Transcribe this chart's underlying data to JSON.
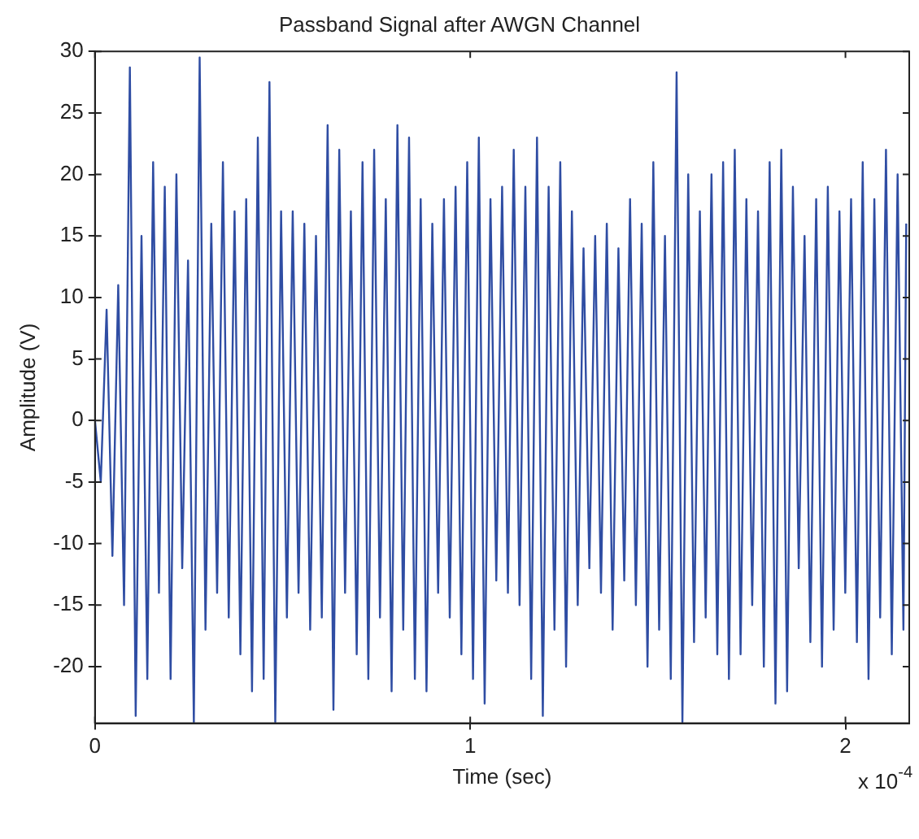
{
  "chart_data": {
    "type": "line",
    "title": "Passband Signal after AWGN Channel",
    "xlabel": "Time (sec)",
    "ylabel": "Amplitude (V)",
    "annotations": [
      "x 10$^{-4}$"
    ],
    "x": [
      0,
      0.0155,
      0.031,
      0.0465,
      0.062,
      0.0775,
      0.093,
      0.1085,
      0.124,
      0.1395,
      0.155,
      0.1705,
      0.186,
      0.2015,
      0.217,
      0.2325,
      0.248,
      0.2635,
      0.279,
      0.2945,
      0.31,
      0.3255,
      0.341,
      0.3565,
      0.372,
      0.3875,
      0.403,
      0.4185,
      0.434,
      0.4495,
      0.465,
      0.4805,
      0.496,
      0.5115,
      0.527,
      0.5425,
      0.558,
      0.5735,
      0.589,
      0.6045,
      0.62,
      0.6355,
      0.651,
      0.6665,
      0.682,
      0.6975,
      0.713,
      0.7285,
      0.744,
      0.7595,
      0.775,
      0.7905,
      0.806,
      0.8215,
      0.837,
      0.8525,
      0.868,
      0.8835,
      0.899,
      0.9145,
      0.93,
      0.9455,
      0.961,
      0.9765,
      0.992,
      1.0075,
      1.023,
      1.0385,
      1.054,
      1.0695,
      1.085,
      1.1005,
      1.116,
      1.1315,
      1.147,
      1.1625,
      1.178,
      1.1935,
      1.209,
      1.2245,
      1.24,
      1.2555,
      1.271,
      1.2865,
      1.302,
      1.3175,
      1.333,
      1.3485,
      1.364,
      1.3795,
      1.395,
      1.4105,
      1.426,
      1.4415,
      1.457,
      1.4725,
      1.488,
      1.5035,
      1.519,
      1.5345,
      1.55,
      1.5655,
      1.581,
      1.5965,
      1.612,
      1.6275,
      1.643,
      1.6585,
      1.674,
      1.6895,
      1.705,
      1.7205,
      1.736,
      1.7515,
      1.767,
      1.7825,
      1.798,
      1.8135,
      1.829,
      1.8445,
      1.86,
      1.8755,
      1.891,
      1.9065,
      1.922,
      1.9375,
      1.953,
      1.9685,
      1.984,
      1.9995,
      2.015,
      2.0305,
      2.046,
      2.0615,
      2.077,
      2.0925,
      2.108,
      2.1235,
      2.139,
      2.1545,
      2.162
    ],
    "series": [
      {
        "color": "#2f4da3",
        "values": [
          0,
          -5,
          9,
          -11,
          11,
          -15,
          28.7,
          -24,
          15,
          -21,
          21,
          -14,
          19,
          -21,
          20,
          -12,
          13,
          -24.5,
          29.5,
          -17,
          16,
          -14,
          21,
          -16,
          17,
          -19,
          18,
          -22,
          23,
          -21,
          27.5,
          -24.5,
          17,
          -16,
          17,
          -14,
          16,
          -17,
          15,
          -16,
          24,
          -23.5,
          22,
          -14,
          17,
          -19,
          21,
          -21,
          22,
          -16,
          18,
          -22,
          24,
          -17,
          23,
          -21,
          18,
          -22,
          16,
          -14,
          18,
          -16,
          19,
          -19,
          21,
          -21,
          23,
          -23,
          18,
          -13,
          19,
          -14,
          22,
          -15,
          19,
          -21,
          23,
          -24,
          19,
          -17,
          21,
          -20,
          17,
          -15,
          14,
          -12,
          15,
          -14,
          16,
          -17,
          14,
          -13,
          18,
          -15,
          16,
          -20,
          21,
          -17,
          15,
          -21,
          28.3,
          -24.5,
          20,
          -18,
          17,
          -16,
          20,
          -19,
          21,
          -21,
          22,
          -19,
          18,
          -15,
          17,
          -20,
          21,
          -23,
          22,
          -22,
          19,
          -12,
          15,
          -18,
          18,
          -20,
          19,
          -17,
          17,
          -14,
          18,
          -18,
          21,
          -21,
          18,
          -16,
          22,
          -19,
          20,
          -17,
          16
        ]
      }
    ],
    "xlim": [
      0,
      2.17
    ],
    "xticks": [
      0,
      1,
      2
    ],
    "ylim": [
      -24.6,
      30
    ],
    "yticks": [
      -20,
      -15,
      -10,
      -5,
      0,
      5,
      10,
      15,
      20,
      25,
      30
    ],
    "grid": false,
    "legend": false,
    "marker": "none",
    "line_style": "solid"
  }
}
